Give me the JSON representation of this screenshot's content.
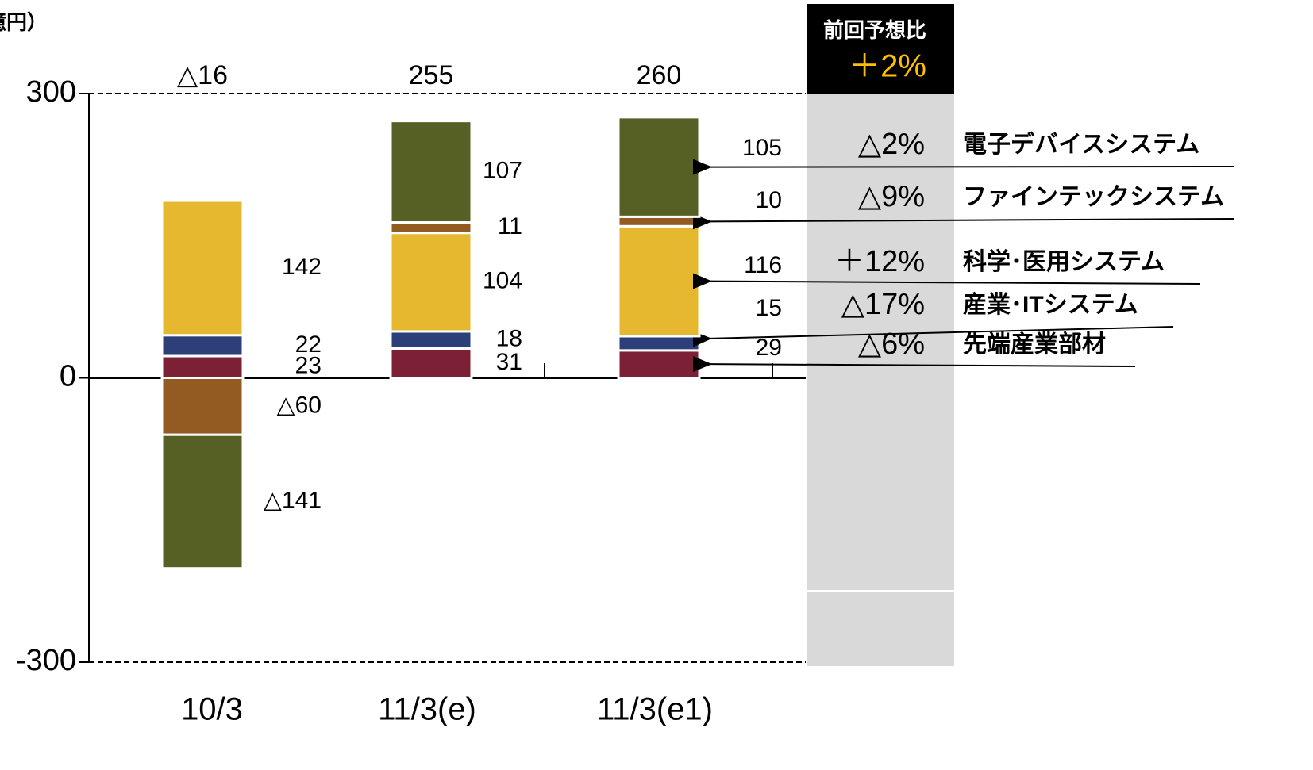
{
  "chart_data": {
    "type": "bar",
    "stacked": true,
    "y_label": "（億円）",
    "categories": [
      "10/3",
      "11/3(e)",
      "11/3(e1)"
    ],
    "ylim": [
      -300,
      300
    ],
    "yticks": [
      -300,
      0,
      300
    ],
    "series": [
      {
        "name": "先端産業部材",
        "color": "#7b2035",
        "values": [
          23,
          31,
          29
        ],
        "change": "△6%"
      },
      {
        "name": "産業･ITシステム",
        "color": "#2d3f78",
        "values": [
          22,
          18,
          15
        ],
        "change": "△17%"
      },
      {
        "name": "科学･医用システム",
        "color": "#e6b830",
        "values": [
          142,
          104,
          116
        ],
        "change": "＋12%"
      },
      {
        "name": "ファインテックシステム",
        "color": "#935a22",
        "values": [
          -60,
          11,
          10
        ],
        "value_labels": [
          "△60",
          "11",
          "10"
        ],
        "change": "△9%"
      },
      {
        "name": "電子デバイスシステム",
        "color": "#566024",
        "values": [
          -141,
          107,
          105
        ],
        "value_labels": [
          "△141",
          "107",
          "105"
        ],
        "change": "△2%"
      }
    ],
    "totals": {
      "values": [
        -16,
        255,
        260
      ],
      "value_labels": [
        "△16",
        "255",
        "260"
      ]
    },
    "comparison": {
      "title": "前回予想比",
      "value": "＋2%"
    }
  }
}
